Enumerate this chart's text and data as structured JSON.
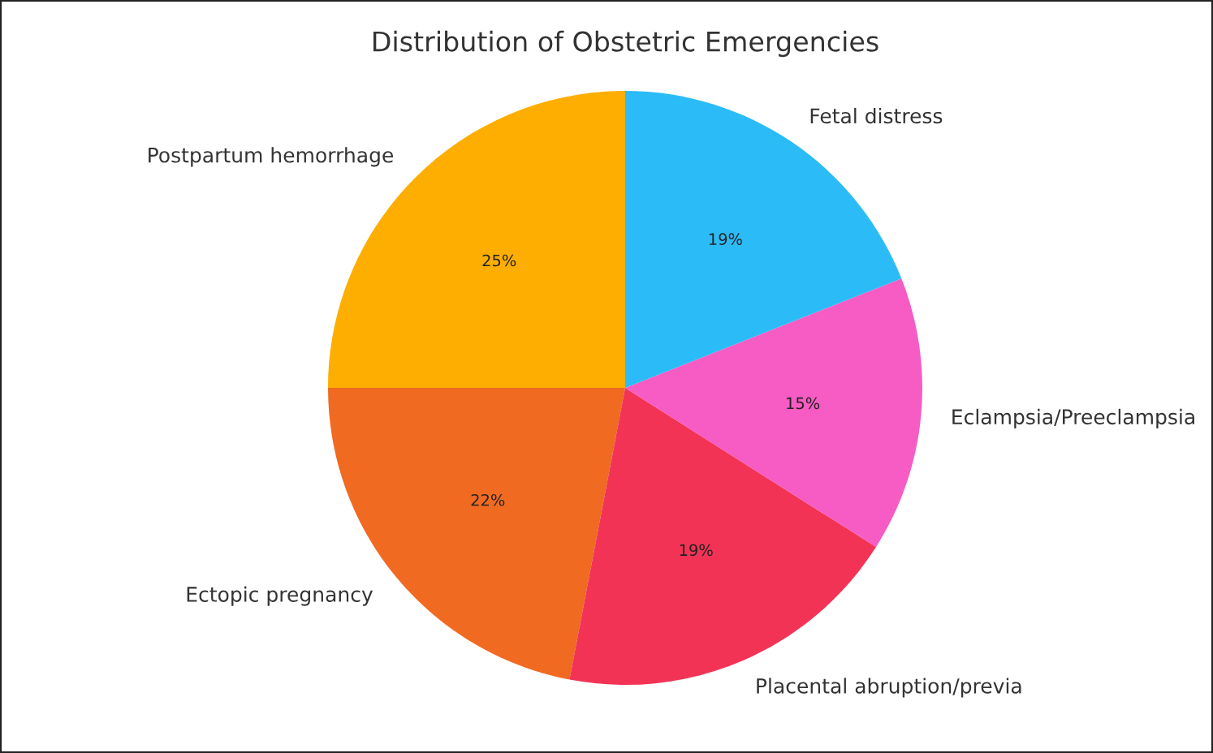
{
  "chart_data": {
    "type": "pie",
    "title": "Distribution of Obstetric Emergencies",
    "categories": [
      "Postpartum hemorrhage",
      "Ectopic pregnancy",
      "Placental abruption/previa",
      "Eclampsia/Preeclampsia",
      "Fetal distress"
    ],
    "values": [
      25,
      22,
      19,
      15,
      19
    ],
    "colors": [
      "#fdae00",
      "#f06a22",
      "#f33356",
      "#f75bc4",
      "#2bbcf8"
    ],
    "value_labels": [
      "25%",
      "22%",
      "19%",
      "15%",
      "19%"
    ],
    "legend": false
  }
}
